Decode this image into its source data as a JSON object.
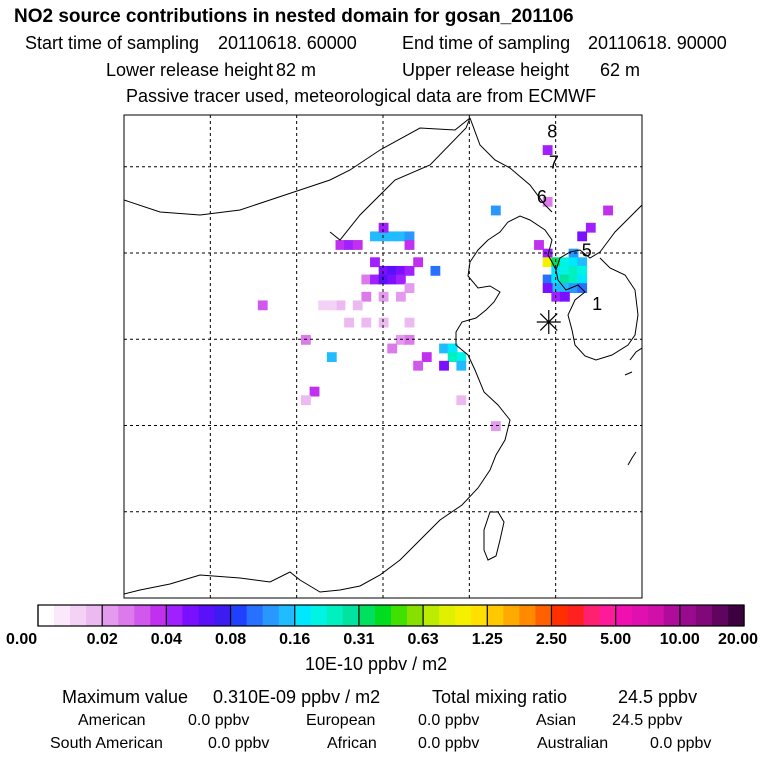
{
  "header": {
    "title": "NO2 source contributions in nested domain for gosan_201106",
    "start_label": "Start time of sampling",
    "start_value": "20110618. 60000",
    "end_label": "End time of sampling",
    "end_value": "20110618. 90000",
    "lower_label": "Lower release height",
    "lower_value": "82 m",
    "upper_label": "Upper release height",
    "upper_value": "62 m",
    "tracer_note": "Passive tracer used, meteorological data are from ECMWF"
  },
  "chart_data": {
    "type": "heatmap",
    "title": "NO2 source contributions in nested domain for gosan_201106",
    "colorbar": {
      "tick_labels": [
        "0.00",
        "0.02",
        "0.04",
        "0.08",
        "0.16",
        "0.31",
        "0.63",
        "1.25",
        "2.50",
        "5.00",
        "10.00",
        "20.00"
      ],
      "unit_label": "10E-10 ppbv / m2",
      "colors": [
        "#ffffff",
        "#fbe8fb",
        "#f4d2f6",
        "#ecbaf1",
        "#e49aee",
        "#dc7aec",
        "#d058ec",
        "#c030ee",
        "#a020ff",
        "#7a10ff",
        "#5a10f8",
        "#3c1cf0",
        "#2040ff",
        "#2870ff",
        "#2898ff",
        "#20bcff",
        "#00e8ff",
        "#00f4e4",
        "#00f0c0",
        "#00e4a0",
        "#00e060",
        "#00dc20",
        "#40e000",
        "#88e000",
        "#bcec00",
        "#e0f000",
        "#f4f000",
        "#ffe000",
        "#ffc800",
        "#ffaa00",
        "#ff8a00",
        "#ff6000",
        "#ff3000",
        "#ff2020",
        "#ff2070",
        "#ff1a9a",
        "#f010b0",
        "#e010b0",
        "#d010a8",
        "#b00c9c",
        "#980a8e",
        "#800878",
        "#600460",
        "#3c0040"
      ]
    },
    "cells": [
      {
        "lon": 114.5,
        "lat": 41.0,
        "level": 15
      },
      {
        "lon": 115.0,
        "lat": 41.0,
        "level": 15
      },
      {
        "lon": 115.5,
        "lat": 41.0,
        "level": 15
      },
      {
        "lon": 116.0,
        "lat": 41.0,
        "level": 15
      },
      {
        "lon": 116.5,
        "lat": 41.0,
        "level": 14
      },
      {
        "lon": 115.0,
        "lat": 41.5,
        "level": 8
      },
      {
        "lon": 112.5,
        "lat": 40.5,
        "level": 7
      },
      {
        "lon": 113.0,
        "lat": 40.5,
        "level": 8
      },
      {
        "lon": 113.5,
        "lat": 40.5,
        "level": 7
      },
      {
        "lon": 116.5,
        "lat": 40.5,
        "level": 7
      },
      {
        "lon": 114.5,
        "lat": 39.5,
        "level": 8
      },
      {
        "lon": 115.0,
        "lat": 39.0,
        "level": 9
      },
      {
        "lon": 115.5,
        "lat": 39.0,
        "level": 10
      },
      {
        "lon": 116.0,
        "lat": 39.0,
        "level": 9
      },
      {
        "lon": 116.5,
        "lat": 39.0,
        "level": 8
      },
      {
        "lon": 114.0,
        "lat": 38.5,
        "level": 5
      },
      {
        "lon": 114.5,
        "lat": 38.5,
        "level": 8
      },
      {
        "lon": 115.0,
        "lat": 38.5,
        "level": 10
      },
      {
        "lon": 115.5,
        "lat": 38.5,
        "level": 9
      },
      {
        "lon": 116.0,
        "lat": 38.5,
        "level": 8
      },
      {
        "lon": 117.0,
        "lat": 39.5,
        "level": 7
      },
      {
        "lon": 118.0,
        "lat": 39.0,
        "level": 13
      },
      {
        "lon": 116.5,
        "lat": 38.0,
        "level": 4
      },
      {
        "lon": 116.0,
        "lat": 37.5,
        "level": 4
      },
      {
        "lon": 115.0,
        "lat": 37.5,
        "level": 4
      },
      {
        "lon": 114.0,
        "lat": 37.5,
        "level": 5
      },
      {
        "lon": 113.5,
        "lat": 37.0,
        "level": 3
      },
      {
        "lon": 112.5,
        "lat": 37.0,
        "level": 3
      },
      {
        "lon": 112.0,
        "lat": 37.0,
        "level": 2
      },
      {
        "lon": 111.5,
        "lat": 37.0,
        "level": 2
      },
      {
        "lon": 113.0,
        "lat": 36.0,
        "level": 3
      },
      {
        "lon": 114.0,
        "lat": 36.0,
        "level": 3
      },
      {
        "lon": 115.0,
        "lat": 36.0,
        "level": 3
      },
      {
        "lon": 116.0,
        "lat": 35.0,
        "level": 4
      },
      {
        "lon": 116.5,
        "lat": 35.0,
        "level": 5
      },
      {
        "lon": 115.5,
        "lat": 34.5,
        "level": 5
      },
      {
        "lon": 116.5,
        "lat": 36.0,
        "level": 3
      },
      {
        "lon": 108.0,
        "lat": 37.0,
        "level": 6
      },
      {
        "lon": 110.5,
        "lat": 35.0,
        "level": 5
      },
      {
        "lon": 112.0,
        "lat": 34.0,
        "level": 15
      },
      {
        "lon": 111.0,
        "lat": 32.0,
        "level": 7
      },
      {
        "lon": 110.5,
        "lat": 31.5,
        "level": 3
      },
      {
        "lon": 118.5,
        "lat": 34.5,
        "level": 15
      },
      {
        "lon": 119.0,
        "lat": 34.5,
        "level": 16
      },
      {
        "lon": 119.0,
        "lat": 34.0,
        "level": 18
      },
      {
        "lon": 119.5,
        "lat": 34.0,
        "level": 17
      },
      {
        "lon": 119.5,
        "lat": 33.5,
        "level": 15
      },
      {
        "lon": 118.5,
        "lat": 33.5,
        "level": 9
      },
      {
        "lon": 117.5,
        "lat": 34.0,
        "level": 7
      },
      {
        "lon": 117.0,
        "lat": 33.5,
        "level": 6
      },
      {
        "lon": 119.5,
        "lat": 31.5,
        "level": 3
      },
      {
        "lon": 121.5,
        "lat": 30.0,
        "level": 4
      },
      {
        "lon": 121.5,
        "lat": 42.5,
        "level": 14
      },
      {
        "lon": 124.5,
        "lat": 46.0,
        "level": 8
      },
      {
        "lon": 124.5,
        "lat": 43.0,
        "level": 5
      },
      {
        "lon": 128.0,
        "lat": 42.5,
        "level": 7
      },
      {
        "lon": 127.0,
        "lat": 41.5,
        "level": 8
      },
      {
        "lon": 126.5,
        "lat": 41.0,
        "level": 9
      },
      {
        "lon": 124.0,
        "lat": 40.5,
        "level": 7
      },
      {
        "lon": 124.5,
        "lat": 40.0,
        "level": 8
      },
      {
        "lon": 126.0,
        "lat": 40.0,
        "level": 14
      },
      {
        "lon": 124.5,
        "lat": 39.5,
        "level": 26
      },
      {
        "lon": 125.0,
        "lat": 39.5,
        "level": 20
      },
      {
        "lon": 125.5,
        "lat": 39.5,
        "level": 17
      },
      {
        "lon": 126.0,
        "lat": 39.5,
        "level": 16
      },
      {
        "lon": 126.5,
        "lat": 39.5,
        "level": 15
      },
      {
        "lon": 125.0,
        "lat": 39.0,
        "level": 16
      },
      {
        "lon": 125.5,
        "lat": 39.0,
        "level": 17
      },
      {
        "lon": 126.0,
        "lat": 39.0,
        "level": 18
      },
      {
        "lon": 126.5,
        "lat": 39.0,
        "level": 17
      },
      {
        "lon": 124.5,
        "lat": 38.5,
        "level": 13
      },
      {
        "lon": 125.0,
        "lat": 38.5,
        "level": 16
      },
      {
        "lon": 125.5,
        "lat": 38.5,
        "level": 19
      },
      {
        "lon": 126.0,
        "lat": 38.5,
        "level": 18
      },
      {
        "lon": 126.5,
        "lat": 38.5,
        "level": 16
      },
      {
        "lon": 125.0,
        "lat": 38.0,
        "level": 15
      },
      {
        "lon": 125.5,
        "lat": 38.0,
        "level": 15
      },
      {
        "lon": 126.0,
        "lat": 38.0,
        "level": 14
      },
      {
        "lon": 126.5,
        "lat": 38.0,
        "level": 13
      },
      {
        "lon": 125.0,
        "lat": 37.5,
        "level": 8
      },
      {
        "lon": 125.5,
        "lat": 37.5,
        "level": 9
      },
      {
        "lon": 124.5,
        "lat": 38.0,
        "level": 9
      }
    ],
    "trajectory_labels": [
      {
        "text": "8",
        "lon": 124.8,
        "lat": 46.7
      },
      {
        "text": "7",
        "lon": 124.9,
        "lat": 44.9
      },
      {
        "text": "6",
        "lon": 124.2,
        "lat": 42.9
      },
      {
        "text": "5",
        "lon": 126.8,
        "lat": 39.8
      },
      {
        "text": "1",
        "lon": 127.4,
        "lat": 36.7
      }
    ],
    "receptor": {
      "lon": 124.6,
      "lat": 36.0,
      "symbol": "asterisk"
    },
    "axes": {
      "lon_range": [
        100,
        130
      ],
      "lat_range": [
        20,
        48
      ],
      "grid": true,
      "grid_lon_step": 5,
      "grid_lat_step": 5
    }
  },
  "stats": {
    "max_label": "Maximum value",
    "max_value": "0.310E-09 ppbv / m2",
    "total_label": "Total mixing ratio",
    "total_value": "24.5 ppbv",
    "regions": [
      {
        "name": "American",
        "value": "0.0 ppbv"
      },
      {
        "name": "European",
        "value": "0.0 ppbv"
      },
      {
        "name": "Asian",
        "value": "24.5 ppbv"
      },
      {
        "name": "South American",
        "value": "0.0 ppbv"
      },
      {
        "name": "African",
        "value": "0.0 ppbv"
      },
      {
        "name": "Australian",
        "value": "0.0 ppbv"
      }
    ]
  }
}
